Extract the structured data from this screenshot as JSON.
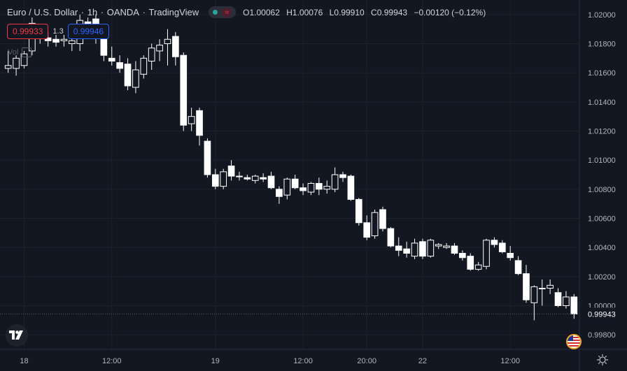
{
  "legend": {
    "symbol": "Euro / U.S. Dollar",
    "interval": "1h",
    "broker": "OANDA",
    "platform": "TradingView",
    "ohlc": {
      "o_label": "O",
      "o_value": "1.00062",
      "h_label": "H",
      "h_value": "1.00076",
      "l_label": "L",
      "l_value": "0.99910",
      "c_label": "C",
      "c_value": "0.99943",
      "change": "−0.00120 (−0.12%)"
    }
  },
  "trade": {
    "sell_price": "0.99933",
    "spread": "1.3",
    "buy_price": "0.99946"
  },
  "volume_label": "Vol",
  "icons": {
    "market_status": "market-open-dot",
    "wave": "≈",
    "logo": "tradingview-logo",
    "settings": "gear-icon",
    "flag": "us-flag-icon"
  },
  "colors": {
    "background": "#131722",
    "candle_up": "#ffffff",
    "candle_down": "#ffffff",
    "grid": "#1e222d",
    "text": "#d1d4dc",
    "sell": "#f23645",
    "buy": "#2962ff"
  },
  "chart_data": {
    "type": "candlestick",
    "price_axis": [
      "1.02000",
      "1.01800",
      "1.01600",
      "1.01400",
      "1.01200",
      "1.01000",
      "1.00800",
      "1.00600",
      "1.00400",
      "1.00200",
      "1.00000",
      "0.99800"
    ],
    "time_axis": [
      "18",
      "12:00",
      "19",
      "12:00",
      "20:00",
      "22",
      "12:00"
    ],
    "ylim": [
      0.997,
      1.021
    ],
    "current_price_label": "0.99943",
    "current_price": 0.99943,
    "candles": [
      [
        1.0163,
        1.0175,
        1.016,
        1.0165
      ],
      [
        1.0163,
        1.0172,
        1.0158,
        1.017
      ],
      [
        1.0165,
        1.0175,
        1.0163,
        1.0173
      ],
      [
        1.0175,
        1.0198,
        1.0172,
        1.0194
      ],
      [
        1.0185,
        1.019,
        1.018,
        1.0186
      ],
      [
        1.0184,
        1.0188,
        1.0178,
        1.0182
      ],
      [
        1.0183,
        1.0186,
        1.0178,
        1.0181
      ],
      [
        1.0182,
        1.0186,
        1.0178,
        1.0183
      ],
      [
        1.018,
        1.0185,
        1.0175,
        1.0182
      ],
      [
        1.018,
        1.02,
        1.0175,
        1.0196
      ],
      [
        1.0195,
        1.0198,
        1.0188,
        1.0192
      ],
      [
        1.0197,
        1.02,
        1.018,
        1.0186
      ],
      [
        1.0186,
        1.019,
        1.0168,
        1.0172
      ],
      [
        1.017,
        1.0178,
        1.0165,
        1.0168
      ],
      [
        1.0167,
        1.0172,
        1.016,
        1.0163
      ],
      [
        1.0166,
        1.017,
        1.0148,
        1.0151
      ],
      [
        1.015,
        1.0168,
        1.0146,
        1.0162
      ],
      [
        1.0159,
        1.0172,
        1.0156,
        1.017
      ],
      [
        1.0168,
        1.018,
        1.0162,
        1.0177
      ],
      [
        1.0175,
        1.0183,
        1.0168,
        1.0179
      ],
      [
        1.018,
        1.019,
        1.0165,
        1.0183
      ],
      [
        1.0185,
        1.0188,
        1.0165,
        1.0171
      ],
      [
        1.0172,
        1.0174,
        1.012,
        1.0124
      ],
      [
        1.0125,
        1.0136,
        1.012,
        1.013
      ],
      [
        1.0134,
        1.0136,
        1.011,
        1.0117
      ],
      [
        1.0113,
        1.0115,
        1.0088,
        1.009
      ],
      [
        1.009,
        1.0094,
        1.008,
        1.0082
      ],
      [
        1.0082,
        1.0094,
        1.008,
        1.0092
      ],
      [
        1.0096,
        1.01,
        1.0086,
        1.0089
      ],
      [
        1.0089,
        1.0092,
        1.0086,
        1.0089
      ],
      [
        1.0088,
        1.009,
        1.0086,
        1.0087
      ],
      [
        1.0086,
        1.009,
        1.0084,
        1.0089
      ],
      [
        1.0088,
        1.0091,
        1.0085,
        1.0087
      ],
      [
        1.0089,
        1.0092,
        1.008,
        1.0081
      ],
      [
        1.008,
        1.0082,
        1.007,
        1.0075
      ],
      [
        1.0076,
        1.0088,
        1.0073,
        1.0087
      ],
      [
        1.0087,
        1.009,
        1.008,
        1.0081
      ],
      [
        1.0081,
        1.0084,
        1.0076,
        1.0079
      ],
      [
        1.0078,
        1.0085,
        1.0076,
        1.0084
      ],
      [
        1.0084,
        1.0088,
        1.0076,
        1.008
      ],
      [
        1.008,
        1.0086,
        1.0077,
        1.0082
      ],
      [
        1.008,
        1.0095,
        1.0078,
        1.009
      ],
      [
        1.009,
        1.0092,
        1.0085,
        1.0088
      ],
      [
        1.0089,
        1.009,
        1.0072,
        1.0073
      ],
      [
        1.0073,
        1.0074,
        1.0055,
        1.0057
      ],
      [
        1.0057,
        1.0062,
        1.0045,
        1.0047
      ],
      [
        1.0048,
        1.0066,
        1.0046,
        1.0064
      ],
      [
        1.0066,
        1.0068,
        1.0051,
        1.0053
      ],
      [
        1.0053,
        1.0054,
        1.004,
        1.0041
      ],
      [
        1.0041,
        1.0047,
        1.0034,
        1.0038
      ],
      [
        1.0039,
        1.0044,
        1.0033,
        1.0036
      ],
      [
        1.0034,
        1.0046,
        1.0032,
        1.0043
      ],
      [
        1.0044,
        1.0046,
        1.0032,
        1.0034
      ],
      [
        1.0034,
        1.0046,
        1.0033,
        1.0045
      ],
      [
        1.0041,
        1.0043,
        1.0039,
        1.0042
      ],
      [
        1.004,
        1.0043,
        1.0039,
        1.0041
      ],
      [
        1.0041,
        1.0043,
        1.0035,
        1.0036
      ],
      [
        1.0036,
        1.0038,
        1.0031,
        1.0033
      ],
      [
        1.0034,
        1.0036,
        1.0024,
        1.0025
      ],
      [
        1.0025,
        1.003,
        1.0024,
        1.0028
      ],
      [
        1.0027,
        1.0046,
        1.0025,
        1.0045
      ],
      [
        1.0045,
        1.0047,
        1.004,
        1.0042
      ],
      [
        1.0043,
        1.0045,
        1.0036,
        1.0037
      ],
      [
        1.0036,
        1.0041,
        1.0031,
        1.0033
      ],
      [
        1.0031,
        1.0034,
        1.0021,
        1.0022
      ],
      [
        1.0022,
        1.0028,
        1.0002,
        1.0004
      ],
      [
        1.0002,
        1.0014,
        0.999,
        1.0013
      ],
      [
        1.0012,
        1.0018,
        1.0,
        1.0012
      ],
      [
        1.0012,
        1.0018,
        1.0008,
        1.0014
      ],
      [
        1.0009,
        1.0012,
        0.9999,
        1.0
      ],
      [
        1.0,
        1.001,
        0.9998,
        1.0006
      ],
      [
        1.0006,
        1.0008,
        0.9991,
        0.99943
      ]
    ]
  }
}
